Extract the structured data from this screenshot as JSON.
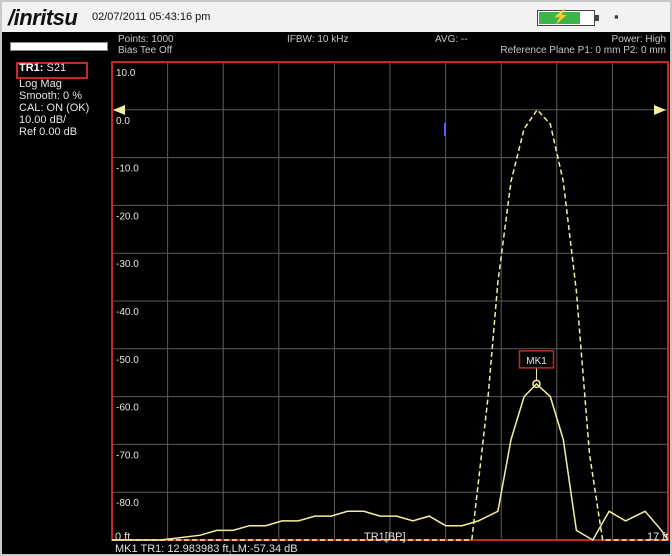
{
  "header": {
    "logo": "/inritsu",
    "datetime": "02/07/2011 05:43:16 pm",
    "battery_level": 0.75
  },
  "status": {
    "points": "Points: 1000",
    "bias_tee": "Bias Tee Off",
    "ifbw": "IFBW: 10 kHz",
    "avg": "AVG: --",
    "power": "Power: High",
    "ref_plane": "Reference Plane P1: 0 mm P2: 0 mm"
  },
  "trace": {
    "id": "TR1:",
    "param": "S21",
    "format": "Log Mag",
    "smooth": "Smooth: 0 %",
    "cal": "CAL: ON (OK)",
    "scale": "10.00 dB/",
    "ref": "Ref 0.00 dB"
  },
  "axes": {
    "y_ticks": [
      "10.0",
      "0.0",
      "-10.0",
      "-20.0",
      "-30.0",
      "-40.0",
      "-50.0",
      "-60.0",
      "-70.0",
      "-80.0"
    ],
    "x_start": "0 ft",
    "x_center": "TR1[BP]",
    "x_end": "17 ft"
  },
  "marker": {
    "label": "MK1",
    "readout": "MK1 TR1:  12.983983 ft,LM:-57.34 dB"
  },
  "chart_data": {
    "type": "line",
    "xlim": [
      0,
      17
    ],
    "ylim": [
      -90,
      10
    ],
    "y_ticks": [
      10,
      0,
      -10,
      -20,
      -30,
      -40,
      -50,
      -60,
      -70,
      -80
    ],
    "series": [
      {
        "style": "dashed",
        "x": [
          0,
          1,
          2,
          3,
          4,
          5,
          6,
          7,
          8,
          9,
          10,
          11,
          11.5,
          11.8,
          12.2,
          12.6,
          13.0,
          13.4,
          13.8,
          14.2,
          14.6,
          15,
          16,
          17
        ],
        "y": [
          -90,
          -90,
          -90,
          -90,
          -90,
          -90,
          -90,
          -90,
          -90,
          -90,
          -90,
          -90,
          -60,
          -36,
          -15,
          -4,
          0,
          -3,
          -15,
          -38,
          -72,
          -90,
          -90,
          -90
        ]
      },
      {
        "style": "solid",
        "x": [
          0,
          1.5,
          2.7,
          3.2,
          3.7,
          4.2,
          4.7,
          5.2,
          5.7,
          6.2,
          6.7,
          7.2,
          7.7,
          8.2,
          8.7,
          9.2,
          9.7,
          10.2,
          10.7,
          11.2,
          11.8,
          12.2,
          12.6,
          12.98,
          13.4,
          13.8,
          14.2,
          14.7,
          15.2,
          15.7,
          16.3,
          16.8,
          17
        ],
        "y": [
          -90,
          -90,
          -89,
          -88,
          -88,
          -87,
          -87,
          -86,
          -86,
          -85,
          -85,
          -84,
          -84,
          -85,
          -85,
          -86,
          -85,
          -87,
          -87,
          -86,
          -84,
          -69,
          -60,
          -57.34,
          -60,
          -69,
          -88,
          -90,
          -84,
          -86,
          -84,
          -88,
          -90
        ]
      }
    ],
    "marker": {
      "x": 12.98,
      "y": -57.34
    }
  }
}
